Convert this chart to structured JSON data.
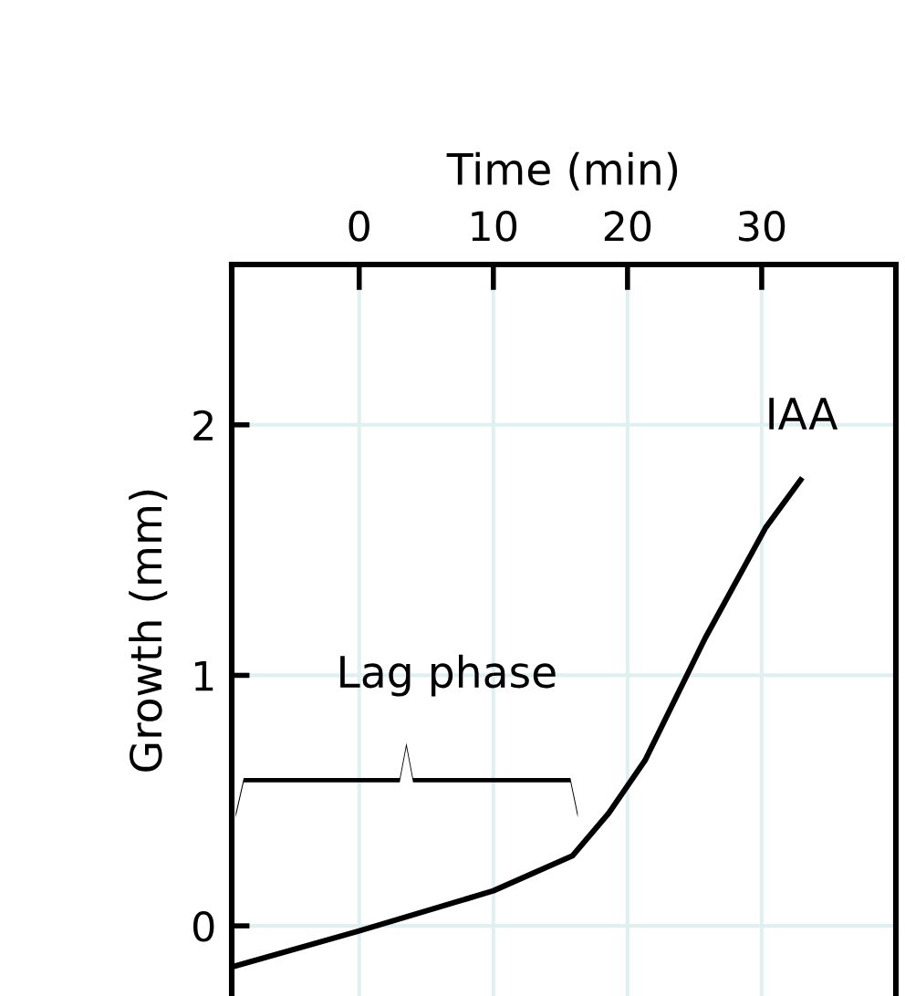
{
  "chart_data": {
    "type": "line",
    "xlabel": "Time (min)",
    "ylabel": "Growth (mm)",
    "x": [
      -9.2,
      0,
      10,
      15.9,
      18.6,
      21.3,
      25.8,
      30.3,
      32.9
    ],
    "series": [
      {
        "color": "#000000",
        "values": [
          -0.16,
          -0.02,
          0.14,
          0.28,
          0.45,
          0.66,
          1.15,
          1.59,
          1.78
        ]
      }
    ],
    "xlim": [
      -9.5,
      40
    ],
    "xticks": [
      0,
      10,
      20,
      30
    ],
    "ylim": [
      -0.28,
      2.64
    ],
    "yticks": [
      0,
      1,
      2
    ],
    "grid": true,
    "marker": "none",
    "line_style": "solid",
    "annotations": [
      "Lag phase",
      "IAA"
    ]
  }
}
